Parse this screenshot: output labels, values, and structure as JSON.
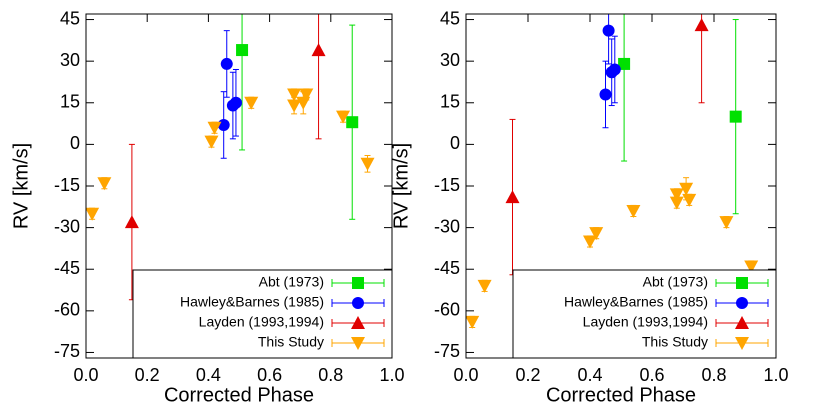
{
  "chart_data": [
    {
      "type": "scatter",
      "xlabel": "Corrected Phase",
      "ylabel": "RV [km/s]",
      "xlim": [
        0,
        1
      ],
      "ylim": [
        -77,
        47
      ],
      "xticks": [
        {
          "value": 0,
          "label": "0.0"
        },
        {
          "value": 0.2,
          "label": "0.2"
        },
        {
          "value": 0.4,
          "label": "0.4"
        },
        {
          "value": 0.6,
          "label": "0.6"
        },
        {
          "value": 0.8,
          "label": "0.8"
        },
        {
          "value": 1,
          "label": "1.0"
        }
      ],
      "yticks": [
        45,
        30,
        15,
        0,
        -15,
        -30,
        -45,
        -60,
        -75
      ],
      "legend": "lower right",
      "series": [
        {
          "name": "Abt (1973)",
          "color": "#00e000",
          "marker": "square",
          "x": [
            0.51,
            0.87
          ],
          "values": [
            34,
            8
          ],
          "errors": [
            36,
            35
          ]
        },
        {
          "name": "Hawley&Barnes (1985)",
          "color": "#0000ff",
          "marker": "circle",
          "x": [
            0.46,
            0.45,
            0.48,
            0.49
          ],
          "values": [
            29,
            7,
            14,
            15
          ],
          "errors": [
            12,
            12,
            12,
            12
          ]
        },
        {
          "name": "Layden (1993,1994)",
          "color": "#e00000",
          "marker": "triangle-up",
          "x": [
            0.15,
            0.76
          ],
          "values": [
            -28,
            34
          ],
          "errors": [
            28,
            32
          ]
        },
        {
          "name": "This Study",
          "color": "#ffa500",
          "marker": "triangle-down",
          "x": [
            0.02,
            0.06,
            0.41,
            0.42,
            0.54,
            0.68,
            0.68,
            0.71,
            0.72,
            0.84,
            0.92
          ],
          "values": [
            -25,
            -14,
            1,
            6,
            15,
            14,
            18,
            15,
            18,
            10,
            -7
          ],
          "errors": [
            2,
            2,
            2,
            2,
            2,
            3,
            2,
            4,
            2,
            2,
            3
          ]
        }
      ]
    },
    {
      "type": "scatter",
      "xlabel": "Corrected Phase",
      "ylabel": "RV [km/s]",
      "xlim": [
        0,
        1
      ],
      "ylim": [
        -77,
        47
      ],
      "xticks": [
        {
          "value": 0,
          "label": "0.0"
        },
        {
          "value": 0.2,
          "label": "0.2"
        },
        {
          "value": 0.4,
          "label": "0.4"
        },
        {
          "value": 0.6,
          "label": "0.6"
        },
        {
          "value": 0.8,
          "label": "0.8"
        },
        {
          "value": 1,
          "label": "1.0"
        }
      ],
      "yticks": [
        45,
        30,
        15,
        0,
        -15,
        -30,
        -45,
        -60,
        -75
      ],
      "legend": "lower right",
      "series": [
        {
          "name": "Abt (1973)",
          "color": "#00e000",
          "marker": "square",
          "x": [
            0.51,
            0.87
          ],
          "values": [
            29,
            10
          ],
          "errors": [
            35,
            35
          ]
        },
        {
          "name": "Hawley&Barnes (1985)",
          "color": "#0000ff",
          "marker": "circle",
          "x": [
            0.46,
            0.45,
            0.47,
            0.48
          ],
          "values": [
            41,
            18,
            26,
            27
          ],
          "errors": [
            12,
            12,
            12,
            12
          ]
        },
        {
          "name": "Layden (1993,1994)",
          "color": "#e00000",
          "marker": "triangle-up",
          "x": [
            0.15,
            0.76
          ],
          "values": [
            -19,
            43
          ],
          "errors": [
            28,
            28
          ]
        },
        {
          "name": "This Study",
          "color": "#ffa500",
          "marker": "triangle-down",
          "x": [
            0.02,
            0.06,
            0.4,
            0.42,
            0.54,
            0.68,
            0.68,
            0.71,
            0.72,
            0.84,
            0.92
          ],
          "values": [
            -64,
            -51,
            -35,
            -32,
            -24,
            -18,
            -21,
            -16,
            -20,
            -28,
            -44
          ],
          "errors": [
            2,
            2,
            2,
            2,
            2,
            2,
            2,
            4,
            2,
            2,
            2
          ]
        }
      ]
    }
  ]
}
